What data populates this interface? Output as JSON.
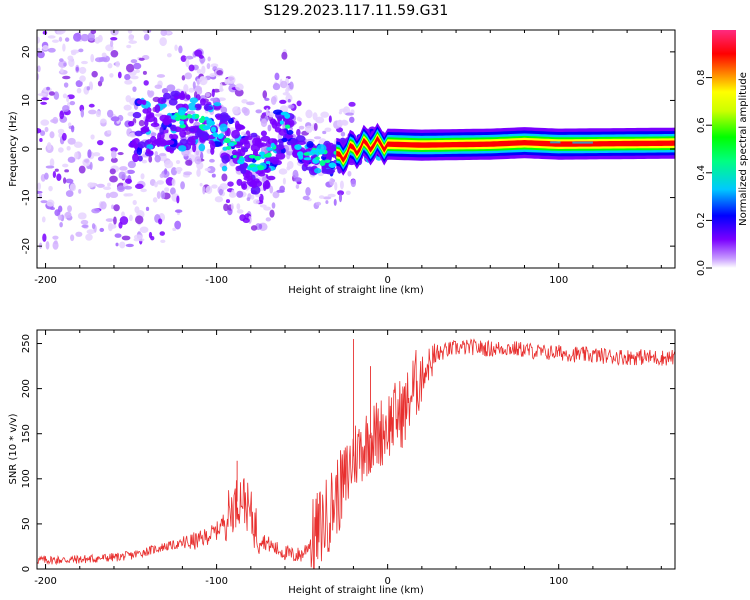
{
  "figure_title": "S129.2023.117.11.59.G31",
  "chart_data": [
    {
      "type": "heatmap",
      "title": "",
      "xlabel": "Height of straight line (km)",
      "ylabel": "Frequency (Hz)",
      "xlim": [
        -205,
        168
      ],
      "ylim": [
        -24.5,
        24.5
      ],
      "x_ticks": [
        "-200",
        "-100",
        "0",
        "100"
      ],
      "x_tick_values": [
        -200,
        -100,
        0,
        100
      ],
      "y_ticks": [
        "20",
        "10",
        "0",
        "-10",
        "-20"
      ],
      "y_tick_values": [
        20,
        10,
        0,
        -10,
        -20
      ],
      "colorbar": {
        "label": "Normalized spectral amplitude",
        "range": [
          0,
          1
        ],
        "ticks": [
          "0.0",
          "0.2",
          "0.4",
          "0.6",
          "0.8"
        ],
        "tick_values": [
          0.0,
          0.2,
          0.4,
          0.6,
          0.8
        ],
        "colormap": [
          "#ffffff",
          "#7a00ff",
          "#0000ff",
          "#00ffff",
          "#00ff00",
          "#ffff00",
          "#ff0000",
          "#ff2a80"
        ]
      },
      "signal_center_hz": [
        [
          -140,
          4
        ],
        [
          -120,
          6
        ],
        [
          -110,
          6
        ],
        [
          -100,
          3.5
        ],
        [
          -90,
          0
        ],
        [
          -80,
          -3
        ],
        [
          -70,
          -2
        ],
        [
          -60,
          6.5
        ],
        [
          -55,
          2
        ],
        [
          -50,
          -1
        ],
        [
          -40,
          -2
        ],
        [
          -30,
          -2
        ],
        [
          -20,
          0
        ],
        [
          -10,
          1
        ],
        [
          0,
          1
        ],
        [
          20,
          0.8
        ],
        [
          60,
          1
        ],
        [
          80,
          1.3
        ],
        [
          100,
          1
        ],
        [
          168,
          1.2
        ]
      ]
    },
    {
      "type": "line",
      "title": "",
      "xlabel": "Height of straight line (km)",
      "ylabel": "SNR (10 * v/v)",
      "xlim": [
        -205,
        168
      ],
      "ylim": [
        0,
        265
      ],
      "x_ticks": [
        "-200",
        "-100",
        "0",
        "100"
      ],
      "x_tick_values": [
        -200,
        -100,
        0,
        100
      ],
      "y_ticks": [
        "0",
        "50",
        "100",
        "150",
        "200",
        "250"
      ],
      "y_tick_values": [
        0,
        50,
        100,
        150,
        200,
        250
      ],
      "series": [
        {
          "color": "#e8302f",
          "x": [
            -205,
            -190,
            -175,
            -160,
            -150,
            -140,
            -130,
            -120,
            -110,
            -100,
            -95,
            -90,
            -85,
            -80,
            -75,
            -70,
            -65,
            -60,
            -55,
            -50,
            -45,
            -40,
            -35,
            -30,
            -25,
            -20,
            -15,
            -10,
            -5,
            0,
            5,
            10,
            15,
            20,
            25,
            30,
            35,
            40,
            50,
            60,
            70,
            80,
            90,
            100,
            110,
            120,
            130,
            140,
            150,
            160,
            168
          ],
          "y": [
            10,
            10,
            11,
            13,
            15,
            20,
            25,
            28,
            32,
            42,
            55,
            70,
            82,
            60,
            35,
            28,
            22,
            18,
            15,
            16,
            30,
            45,
            60,
            80,
            95,
            125,
            135,
            145,
            150,
            160,
            170,
            175,
            200,
            215,
            230,
            238,
            243,
            245,
            246,
            244,
            245,
            243,
            240,
            240,
            238,
            237,
            236,
            235,
            235,
            234,
            235
          ]
        }
      ],
      "annotations_peaks": [
        [
          -88,
          120
        ],
        [
          -20,
          255
        ],
        [
          -10,
          225
        ]
      ]
    }
  ]
}
